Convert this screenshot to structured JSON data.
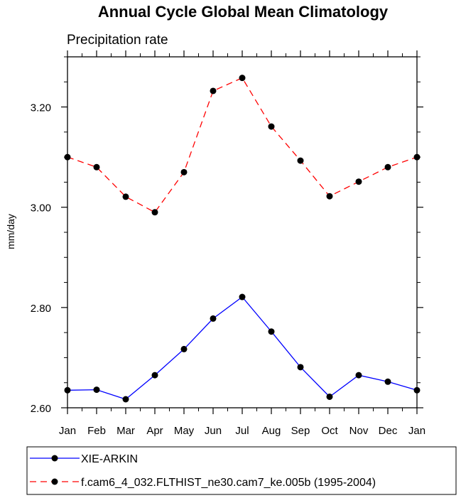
{
  "chart_data": {
    "type": "line",
    "title": "Annual Cycle Global Mean Climatology",
    "subtitle": "Precipitation rate",
    "xlabel": "",
    "ylabel": "mm/day",
    "categories": [
      "Jan",
      "Feb",
      "Mar",
      "Apr",
      "May",
      "Jun",
      "Jul",
      "Aug",
      "Sep",
      "Oct",
      "Nov",
      "Dec",
      "Jan"
    ],
    "ylim": [
      2.6,
      3.3
    ],
    "yticks": [
      "2.60",
      "2.80",
      "3.00",
      "3.20"
    ],
    "grid": false,
    "legend_position": "bottom",
    "series": [
      {
        "name": "XIE-ARKIN",
        "color": "#0000ff",
        "dash": "solid",
        "values": [
          2.635,
          2.636,
          2.617,
          2.665,
          2.717,
          2.778,
          2.821,
          2.752,
          2.681,
          2.622,
          2.665,
          2.652,
          2.635
        ]
      },
      {
        "name": "f.cam6_4_032.FLTHIST_ne30.cam7_ke.005b (1995-2004)",
        "color": "#ff0000",
        "dash": "dashed",
        "values": [
          3.1,
          3.08,
          3.021,
          2.99,
          3.07,
          3.232,
          3.258,
          3.161,
          3.093,
          3.022,
          3.051,
          3.08,
          3.1
        ]
      }
    ]
  }
}
